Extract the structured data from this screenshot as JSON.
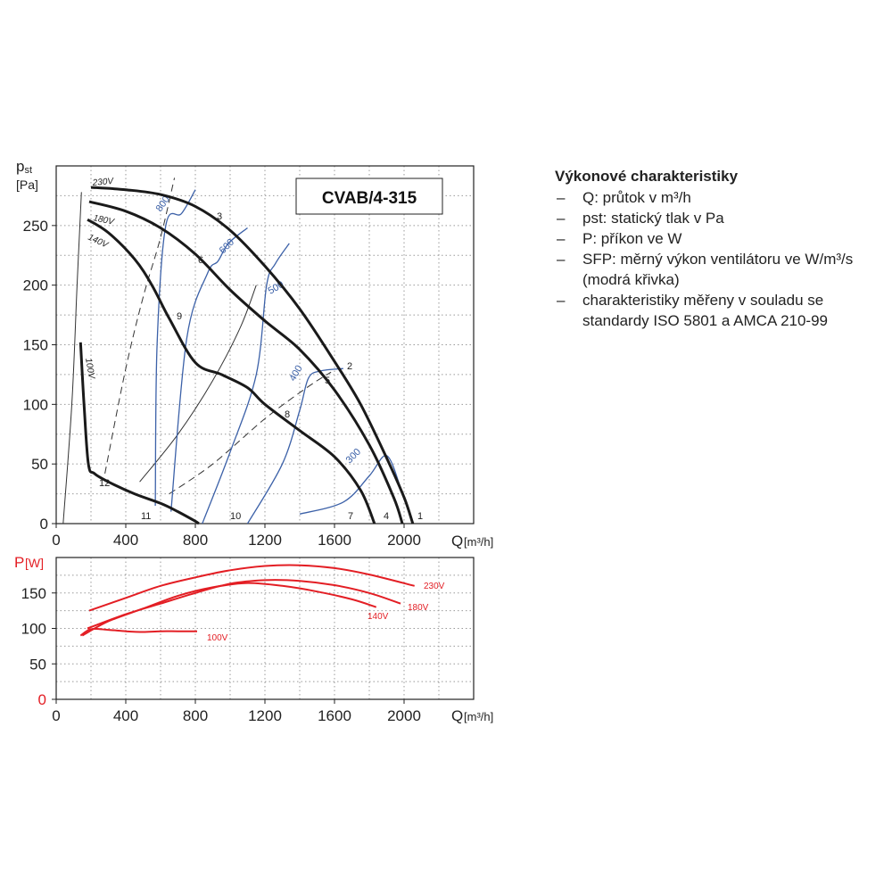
{
  "chart_data": [
    {
      "type": "line",
      "title": "CVAB/4-315",
      "ylabel_main": "p",
      "ylabel_sub": "st",
      "ylabel_unit": "[Pa]",
      "xlabel": "Q",
      "xlabel_unit": "[m³/h]",
      "xlim": [
        0,
        2400
      ],
      "ylim": [
        0,
        300
      ],
      "xticks": [
        0,
        400,
        800,
        1200,
        1600,
        2000
      ],
      "yticks": [
        0,
        50,
        100,
        150,
        200,
        250
      ],
      "grid": true,
      "fan_curves": [
        {
          "name": "230V",
          "x": [
            200,
            400,
            600,
            800,
            1000,
            1200,
            1400,
            1600,
            1750,
            1900,
            2000,
            2050
          ],
          "y": [
            282,
            280,
            276,
            266,
            246,
            216,
            180,
            136,
            100,
            55,
            22,
            0
          ]
        },
        {
          "name": "180V",
          "x": [
            190,
            400,
            600,
            800,
            1000,
            1200,
            1400,
            1600,
            1800,
            1940,
            1990
          ],
          "y": [
            270,
            262,
            248,
            226,
            196,
            170,
            146,
            112,
            66,
            22,
            0
          ]
        },
        {
          "name": "140V",
          "x": [
            180,
            300,
            450,
            550,
            650,
            800,
            950,
            1100,
            1200,
            1400,
            1600,
            1750,
            1830
          ],
          "y": [
            255,
            244,
            222,
            200,
            172,
            135,
            125,
            114,
            100,
            78,
            56,
            28,
            0
          ]
        },
        {
          "name": "100V",
          "x": [
            140,
            160,
            185,
            220,
            300,
            450,
            600,
            700,
            800,
            820
          ],
          "y": [
            152,
            100,
            50,
            42,
            35,
            25,
            17,
            10,
            2,
            0
          ]
        }
      ],
      "sfp_curves": [
        {
          "name": "800",
          "x": [
            570,
            580,
            630,
            720,
            800
          ],
          "y": [
            15,
            150,
            250,
            260,
            280
          ]
        },
        {
          "name": "600",
          "x": [
            660,
            750,
            870,
            930,
            990,
            1100
          ],
          "y": [
            10,
            155,
            210,
            220,
            235,
            248
          ]
        },
        {
          "name": "500",
          "x": [
            840,
            1000,
            1150,
            1210,
            1260,
            1340
          ],
          "y": [
            0,
            60,
            125,
            200,
            218,
            235
          ]
        },
        {
          "name": "400",
          "x": [
            1100,
            1300,
            1400,
            1450,
            1520,
            1650
          ],
          "y": [
            0,
            50,
            95,
            122,
            128,
            130
          ]
        },
        {
          "name": "300",
          "x": [
            1400,
            1650,
            1800,
            1900,
            1980
          ],
          "y": [
            8,
            18,
            40,
            57,
            30
          ]
        }
      ],
      "ref_curves": [
        {
          "name": "dashed-left",
          "dashed": true,
          "x": [
            280,
            400,
            500,
            600,
            680
          ],
          "y": [
            42,
            130,
            190,
            240,
            290
          ]
        },
        {
          "name": "dashed-right",
          "dashed": true,
          "x": [
            650,
            900,
            1200,
            1450,
            1580
          ],
          "y": [
            25,
            50,
            88,
            115,
            127
          ]
        },
        {
          "name": "thin-100",
          "dashed": false,
          "x": [
            40,
            90,
            120,
            145
          ],
          "y": [
            0,
            100,
            200,
            278
          ]
        },
        {
          "name": "thin-mid",
          "dashed": false,
          "x": [
            480,
            700,
            900,
            1060,
            1150
          ],
          "y": [
            35,
            75,
            120,
            165,
            200
          ]
        }
      ],
      "voltage_labels": [
        "230V",
        "180V",
        "140V",
        "100V"
      ],
      "point_labels": [
        "1",
        "2",
        "3",
        "4",
        "5",
        "6",
        "7",
        "8",
        "9",
        "10",
        "11",
        "12"
      ]
    },
    {
      "type": "line",
      "ylabel": "P",
      "ylabel_unit": "[W]",
      "xlabel": "Q",
      "xlabel_unit": "[m³/h]",
      "xlim": [
        0,
        2400
      ],
      "ylim": [
        0,
        200
      ],
      "xticks": [
        0,
        400,
        800,
        1200,
        1600,
        2000
      ],
      "yticks": [
        0,
        50,
        100,
        150
      ],
      "grid": true,
      "series": [
        {
          "name": "230V",
          "x": [
            190,
            400,
            600,
            800,
            1000,
            1200,
            1400,
            1600,
            1800,
            2060
          ],
          "y": [
            125,
            143,
            160,
            172,
            182,
            188,
            189,
            185,
            176,
            160
          ]
        },
        {
          "name": "180V",
          "x": [
            180,
            400,
            600,
            800,
            1000,
            1200,
            1400,
            1600,
            1800,
            1980
          ],
          "y": [
            100,
            120,
            135,
            150,
            163,
            168,
            167,
            161,
            150,
            135
          ]
        },
        {
          "name": "140V",
          "x": [
            150,
            300,
            500,
            700,
            900,
            1100,
            1300,
            1500,
            1700,
            1840
          ],
          "y": [
            90,
            110,
            128,
            146,
            158,
            164,
            160,
            152,
            141,
            130
          ]
        },
        {
          "name": "100V",
          "x": [
            140,
            200,
            300,
            400,
            500,
            600,
            700,
            810
          ],
          "y": [
            90,
            99,
            98,
            96,
            95,
            96,
            96,
            96
          ]
        }
      ]
    }
  ],
  "legend": {
    "title": "Výkonové charakteristiky",
    "items": [
      {
        "dash": "–",
        "lines": [
          "Q: průtok v m³/h"
        ]
      },
      {
        "dash": "–",
        "lines": [
          "pst: statický tlak v Pa"
        ]
      },
      {
        "dash": "–",
        "lines": [
          "P: příkon ve W"
        ]
      },
      {
        "dash": "–",
        "lines": [
          "SFP: měrný výkon ventilátoru ve W/m³/s",
          "(modrá křivka)"
        ]
      },
      {
        "dash": "–",
        "lines": [
          "charakteristiky měřeny v souladu se",
          "standardy ISO 5801 a AMCA 210-99"
        ]
      }
    ]
  },
  "colors": {
    "fan": "#1a1a1a",
    "sfp": "#3c61a8",
    "power": "#e31e24",
    "grid": "#999999"
  }
}
